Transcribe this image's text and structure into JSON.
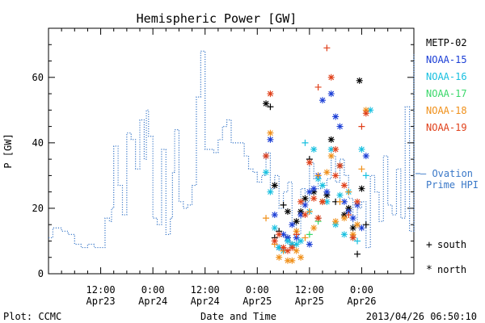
{
  "chart_data": {
    "type": "line",
    "title": "Hemispheric Power [GW]",
    "xlabel": "Date and Time",
    "ylabel": "P [GW]",
    "x_unit": "hours from Apr 23 00:00",
    "xlim": [
      0,
      84
    ],
    "ylim": [
      0,
      75
    ],
    "y_ticks": [
      0,
      20,
      40,
      60
    ],
    "x_ticks": [
      {
        "x": 12,
        "top": "12:00",
        "bottom": "Apr23"
      },
      {
        "x": 24,
        "top": "0:00",
        "bottom": "Apr24"
      },
      {
        "x": 36,
        "top": "12:00",
        "bottom": "Apr24"
      },
      {
        "x": 48,
        "top": "0:00",
        "bottom": "Apr25"
      },
      {
        "x": 60,
        "top": "12:00",
        "bottom": "Apr25"
      },
      {
        "x": 72,
        "top": "0:00",
        "bottom": "Apr26"
      }
    ],
    "grid": false,
    "footer_left": "Plot: CCMC",
    "footer_right": "2013/04/26 06:50:10",
    "symbol_legend": [
      {
        "symbol": "+",
        "label": "south"
      },
      {
        "symbol": "*",
        "label": "north"
      }
    ],
    "ovation": {
      "name": "— Ovation Prime HPI",
      "name_lines": [
        "— Ovation",
        "Prime HPI"
      ],
      "color": "#3a78c8",
      "style": "dotted-step",
      "x": [
        0,
        1,
        3,
        4.5,
        6,
        7.5,
        9,
        10.5,
        11,
        12,
        13,
        14,
        14.5,
        15,
        16,
        17,
        18,
        19,
        20,
        21,
        22,
        22.5,
        23,
        24,
        25,
        26,
        27,
        28,
        28.5,
        29,
        30,
        31,
        32,
        33,
        34,
        35,
        36,
        37,
        38,
        39,
        40,
        41,
        42,
        43,
        44,
        45,
        46,
        47,
        48,
        49,
        50,
        51,
        52,
        53,
        54,
        55,
        56,
        57,
        58,
        59,
        60,
        61,
        62,
        63,
        64,
        65,
        66,
        67,
        68,
        69,
        70,
        71,
        72,
        73,
        74,
        75,
        76,
        77,
        78,
        79,
        80,
        81,
        82,
        83,
        84
      ],
      "y": [
        11,
        14,
        13,
        12,
        9,
        8,
        9,
        8,
        8,
        8,
        17,
        16,
        20,
        39,
        27,
        18,
        43,
        41,
        32,
        47,
        35,
        50,
        42,
        17,
        15,
        38,
        12,
        17,
        31,
        44,
        22,
        20,
        21,
        27,
        54,
        68,
        38,
        38,
        37,
        41,
        45,
        47,
        40,
        40,
        40,
        36,
        32,
        31,
        28,
        30,
        37,
        26,
        30,
        20,
        25,
        28,
        15,
        12,
        26,
        22,
        34,
        29,
        26,
        27,
        29,
        36,
        28,
        35,
        30,
        23,
        15,
        20,
        22,
        8,
        30,
        25,
        16,
        36,
        21,
        18,
        32,
        17,
        51,
        13,
        67
      ]
    },
    "series": [
      {
        "name": "METP-02",
        "color": "#000000",
        "points": [
          [
            50,
            52,
            "*"
          ],
          [
            51,
            51,
            "+"
          ],
          [
            52,
            27,
            "*"
          ],
          [
            53,
            13,
            "+"
          ],
          [
            54,
            21,
            "+"
          ],
          [
            55,
            11,
            "*"
          ],
          [
            56,
            9,
            "*"
          ],
          [
            57,
            16,
            "*"
          ],
          [
            58,
            19,
            "*"
          ],
          [
            59,
            23,
            "*"
          ],
          [
            60,
            35,
            "+"
          ],
          [
            61,
            25,
            "*"
          ],
          [
            62,
            17,
            "+"
          ],
          [
            63,
            22,
            "*"
          ],
          [
            64,
            24,
            "*"
          ],
          [
            65,
            41,
            "*"
          ],
          [
            66,
            22,
            "+"
          ],
          [
            67,
            33,
            "*"
          ],
          [
            68,
            18,
            "*"
          ],
          [
            69,
            20,
            "*"
          ],
          [
            70,
            14,
            "*"
          ],
          [
            71,
            6,
            "+"
          ],
          [
            71.5,
            59,
            "*"
          ],
          [
            72,
            26,
            "*"
          ],
          [
            73,
            15,
            "+"
          ],
          [
            52,
            11,
            "+"
          ],
          [
            55,
            19,
            "*"
          ]
        ]
      },
      {
        "name": "NOAA-15",
        "color": "#1c3fd6",
        "points": [
          [
            50,
            36,
            "*"
          ],
          [
            51,
            41,
            "*"
          ],
          [
            52,
            18,
            "*"
          ],
          [
            53,
            8,
            "*"
          ],
          [
            54,
            12,
            "*"
          ],
          [
            55,
            10,
            "+"
          ],
          [
            56,
            15,
            "*"
          ],
          [
            57,
            11,
            "*"
          ],
          [
            58,
            18,
            "*"
          ],
          [
            59,
            21,
            "*"
          ],
          [
            60,
            25,
            "*"
          ],
          [
            61,
            26,
            "*"
          ],
          [
            62,
            30,
            "*"
          ],
          [
            63,
            53,
            "*"
          ],
          [
            64,
            25,
            "*"
          ],
          [
            65,
            55,
            "*"
          ],
          [
            66,
            48,
            "*"
          ],
          [
            67,
            45,
            "*"
          ],
          [
            68,
            22,
            "*"
          ],
          [
            69,
            19,
            "*"
          ],
          [
            70,
            17,
            "*"
          ],
          [
            71,
            21,
            "*"
          ],
          [
            72,
            14,
            "*"
          ],
          [
            73,
            36,
            "*"
          ],
          [
            60,
            9,
            "*"
          ],
          [
            55,
            11,
            "*"
          ]
        ]
      },
      {
        "name": "NOAA-16",
        "color": "#18c0e0",
        "points": [
          [
            50,
            31,
            "*"
          ],
          [
            51,
            25,
            "*"
          ],
          [
            52,
            14,
            "*"
          ],
          [
            53,
            8,
            "*"
          ],
          [
            54,
            7,
            "*"
          ],
          [
            55,
            10,
            "*"
          ],
          [
            56,
            9,
            "*"
          ],
          [
            57,
            9,
            "*"
          ],
          [
            58,
            10,
            "*"
          ],
          [
            59,
            40,
            "+"
          ],
          [
            60,
            19,
            "*"
          ],
          [
            61,
            38,
            "*"
          ],
          [
            62,
            29,
            "*"
          ],
          [
            63,
            27,
            "*"
          ],
          [
            64,
            22,
            "*"
          ],
          [
            65,
            38,
            "*"
          ],
          [
            66,
            15,
            "*"
          ],
          [
            67,
            24,
            "*"
          ],
          [
            68,
            12,
            "*"
          ],
          [
            69,
            25,
            "*"
          ],
          [
            70,
            11,
            "*"
          ],
          [
            71,
            10,
            "+"
          ],
          [
            72,
            38,
            "*"
          ],
          [
            73,
            30,
            "+"
          ],
          [
            74,
            50,
            "*"
          ]
        ]
      },
      {
        "name": "NOAA-17",
        "color": "#3ad86a",
        "points": [
          [
            60,
            12,
            "+"
          ],
          [
            62,
            16,
            "+"
          ]
        ]
      },
      {
        "name": "NOAA-18",
        "color": "#f0901a",
        "points": [
          [
            50,
            17,
            "+"
          ],
          [
            51,
            43,
            "*"
          ],
          [
            52,
            9,
            "+"
          ],
          [
            53,
            5,
            "*"
          ],
          [
            54,
            7,
            "+"
          ],
          [
            55,
            4,
            "*"
          ],
          [
            56,
            4,
            "*"
          ],
          [
            57,
            7,
            "*"
          ],
          [
            58,
            5,
            "*"
          ],
          [
            59,
            11,
            "+"
          ],
          [
            60,
            19,
            "+"
          ],
          [
            61,
            14,
            "*"
          ],
          [
            62,
            30,
            "+"
          ],
          [
            63,
            22,
            "*"
          ],
          [
            64,
            31,
            "*"
          ],
          [
            65,
            36,
            "*"
          ],
          [
            66,
            16,
            "*"
          ],
          [
            67,
            22,
            "+"
          ],
          [
            68,
            17,
            "*"
          ],
          [
            69,
            25,
            "+"
          ],
          [
            70,
            12,
            "*"
          ],
          [
            71,
            15,
            "*"
          ],
          [
            72,
            32,
            "+"
          ],
          [
            73,
            50,
            "*"
          ],
          [
            57,
            13,
            "*"
          ]
        ]
      },
      {
        "name": "NOAA-19",
        "color": "#e0401a",
        "points": [
          [
            50,
            36,
            "*"
          ],
          [
            51,
            55,
            "*"
          ],
          [
            52,
            10,
            "*"
          ],
          [
            53,
            12,
            "*"
          ],
          [
            54,
            8,
            "*"
          ],
          [
            55,
            7,
            "*"
          ],
          [
            56,
            8,
            "*"
          ],
          [
            57,
            12,
            "+"
          ],
          [
            58,
            22,
            "*"
          ],
          [
            59,
            18,
            "*"
          ],
          [
            60,
            34,
            "*"
          ],
          [
            61,
            23,
            "*"
          ],
          [
            62,
            57,
            "+"
          ],
          [
            63,
            22,
            "*"
          ],
          [
            64,
            69,
            "+"
          ],
          [
            65,
            60,
            "*"
          ],
          [
            66,
            30,
            "*"
          ],
          [
            67,
            33,
            "*"
          ],
          [
            68,
            27,
            "*"
          ],
          [
            69,
            18,
            "+"
          ],
          [
            70,
            11,
            "*"
          ],
          [
            71,
            22,
            "*"
          ],
          [
            72,
            45,
            "+"
          ],
          [
            73,
            49,
            "*"
          ],
          [
            62,
            17,
            "*"
          ],
          [
            66,
            38,
            "*"
          ]
        ]
      }
    ]
  }
}
